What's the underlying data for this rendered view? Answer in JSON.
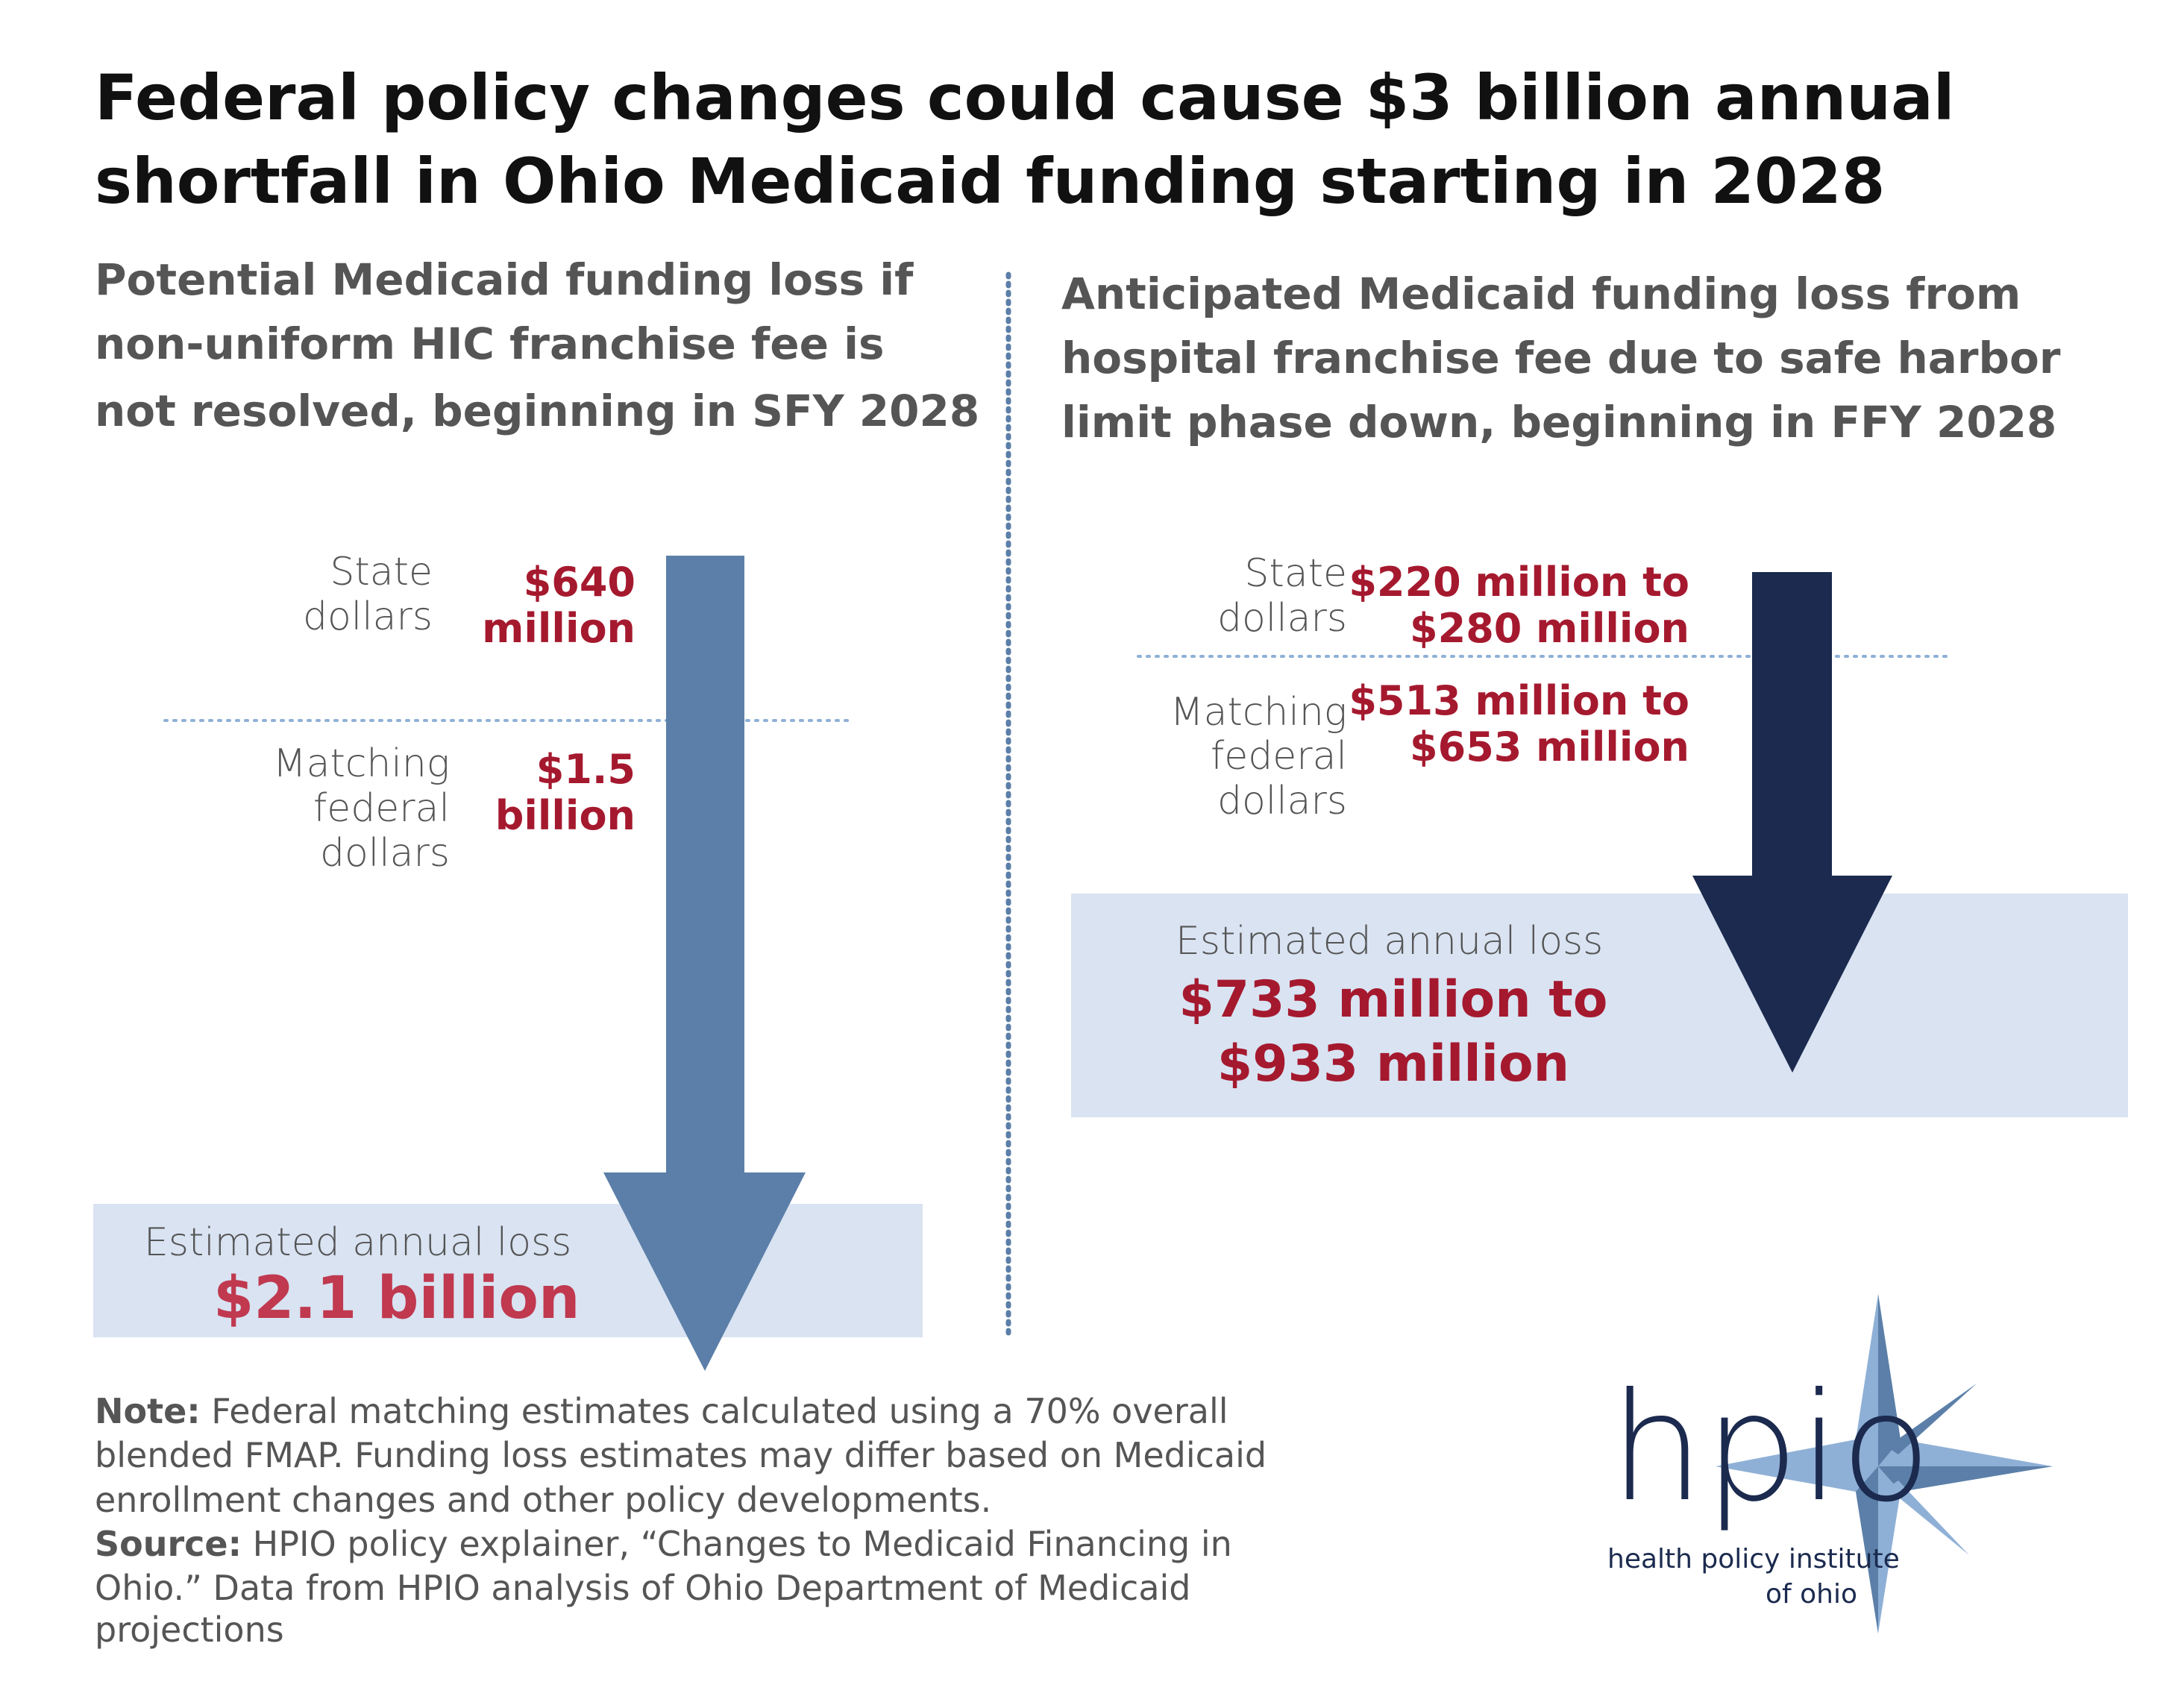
{
  "title": [
    "Federal policy changes could cause $3 billion annual",
    "shortfall in Ohio Medicaid funding starting in 2028"
  ],
  "left": {
    "heading": [
      "Potential Medicaid funding loss if",
      "non-uniform HIC franchise fee is",
      "not resolved, beginning in SFY 2028"
    ],
    "state_label": [
      "State",
      "dollars"
    ],
    "state_value": [
      "$640",
      "million"
    ],
    "federal_label": [
      "Matching",
      "federal",
      "dollars"
    ],
    "federal_value": [
      "$1.5",
      "billion"
    ],
    "total_label": "Estimated annual loss",
    "total_value": [
      "$2.1 billion"
    ]
  },
  "right": {
    "heading": [
      "Anticipated Medicaid funding loss from",
      "hospital franchise fee due to safe harbor",
      "limit phase down, beginning in FFY 2028"
    ],
    "state_label": [
      "State",
      "dollars"
    ],
    "state_value": [
      "$220 million to",
      "$280 million"
    ],
    "federal_label": [
      "Matching",
      "federal",
      "dollars"
    ],
    "federal_value": [
      "$513 million to",
      "$653 million"
    ],
    "total_label": "Estimated annual loss",
    "total_value": [
      "$733 million to",
      "$933 million"
    ]
  },
  "note": {
    "label": "Note:",
    "lines": [
      " Federal matching estimates calculated using a 70% overall",
      "blended FMAP. Funding loss estimates may differ based on Medicaid",
      "enrollment changes and other policy developments."
    ]
  },
  "source": {
    "label": "Source:",
    "lines": [
      " HPIO policy explainer, “Changes to Medicaid Financing in",
      "Ohio.” Data from HPIO analysis of Ohio Department of Medicaid",
      "projections"
    ]
  },
  "logo": {
    "mark": "hpio",
    "name": [
      "health policy institute",
      "of ohio"
    ]
  }
}
